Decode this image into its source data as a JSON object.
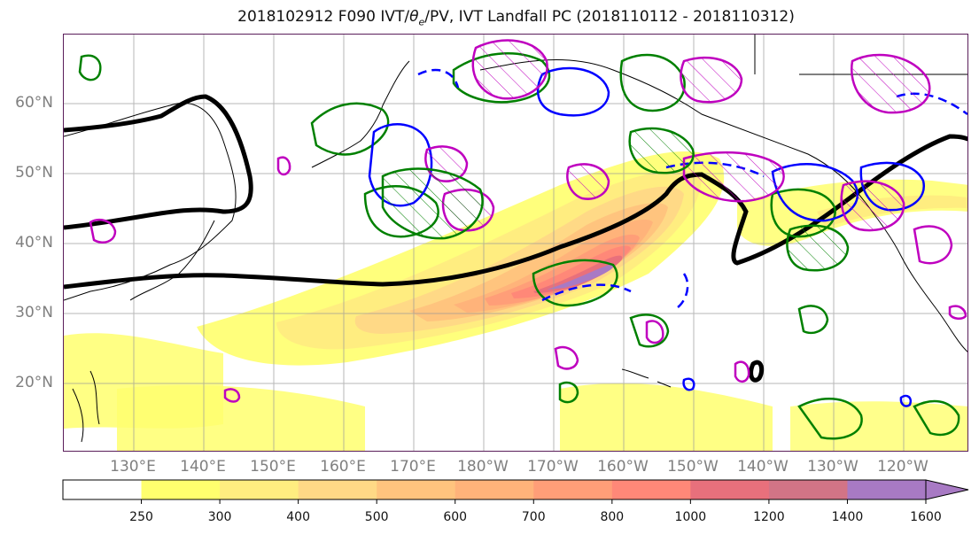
{
  "title_prefix": "2018102912 F090 IVT/",
  "title_theta": "θ",
  "title_sub": "e",
  "title_suffix": "/PV, IVT Landfall PC (2018110112 - 2018110312)",
  "map": {
    "lat_labels": [
      "60°N",
      "50°N",
      "40°N",
      "30°N",
      "20°N"
    ],
    "lon_labels": [
      "130°E",
      "140°E",
      "150°E",
      "160°E",
      "170°E",
      "180°W",
      "170°W",
      "160°W",
      "150°W",
      "140°W",
      "130°W",
      "120°W"
    ],
    "colors": {
      "land_outline": "#000000",
      "grid": "#999999",
      "thick_contour": "#000000",
      "green_contour": "#008000",
      "blue_contour": "#0000ff",
      "magenta_contour": "#bf00bf",
      "frame": "#5a1e5a"
    }
  },
  "colorbar": {
    "levels": [
      "250",
      "300",
      "400",
      "500",
      "600",
      "700",
      "800",
      "1000",
      "1200",
      "1400",
      "1600"
    ],
    "colors": [
      "#ffffff",
      "#ffff6e",
      "#ffed80",
      "#ffd986",
      "#ffc47e",
      "#ffb37a",
      "#ff9e78",
      "#ff8878",
      "#e8707c",
      "#d27486",
      "#a87ac4"
    ]
  }
}
